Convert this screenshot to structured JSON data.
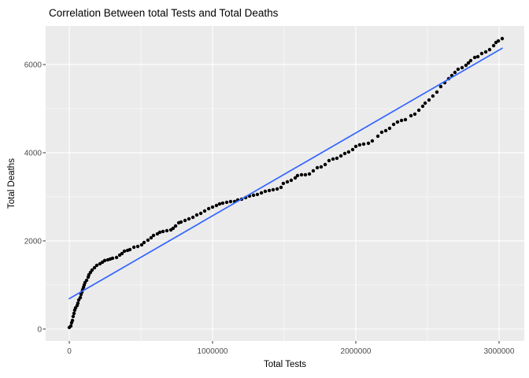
{
  "chart_data": {
    "type": "scatter",
    "title": "Correlation Between total Tests and Total Deaths",
    "xlabel": "Total Tests",
    "ylabel": "Total Deaths",
    "xlim": [
      -165000,
      3176000
    ],
    "ylim": [
      -270,
      6875
    ],
    "grid": true,
    "legend": "none",
    "panel_bg": "#EBEBEB",
    "grid_color": "#FFFFFF",
    "tick_color": "#333333",
    "tick_label_color": "#4D4D4D",
    "point_color": "#000000",
    "x_ticks": {
      "major": [
        0,
        1000000,
        2000000,
        3000000
      ],
      "minor": [
        500000,
        1500000,
        2500000
      ],
      "labels": [
        "0",
        "1000000",
        "2000000",
        "3000000"
      ]
    },
    "y_ticks": {
      "major": [
        0,
        2000,
        4000,
        6000
      ],
      "minor": [
        1000,
        3000,
        5000
      ],
      "labels": [
        "0",
        "2000",
        "4000",
        "6000"
      ]
    },
    "smooth_line": {
      "name": "linear-fit",
      "color": "#3366FF",
      "x": [
        0,
        3022000
      ],
      "y": [
        690,
        6370
      ]
    },
    "points": [
      [
        0,
        36
      ],
      [
        11000,
        71
      ],
      [
        16000,
        143
      ],
      [
        22000,
        196
      ],
      [
        27000,
        286
      ],
      [
        33000,
        357
      ],
      [
        38000,
        429
      ],
      [
        44000,
        482
      ],
      [
        55000,
        536
      ],
      [
        60000,
        589
      ],
      [
        66000,
        661
      ],
      [
        77000,
        714
      ],
      [
        82000,
        786
      ],
      [
        88000,
        839
      ],
      [
        93000,
        893
      ],
      [
        99000,
        946
      ],
      [
        104000,
        1000
      ],
      [
        110000,
        1054
      ],
      [
        121000,
        1107
      ],
      [
        132000,
        1179
      ],
      [
        137000,
        1232
      ],
      [
        148000,
        1286
      ],
      [
        159000,
        1339
      ],
      [
        176000,
        1393
      ],
      [
        192000,
        1446
      ],
      [
        214000,
        1482
      ],
      [
        231000,
        1518
      ],
      [
        247000,
        1554
      ],
      [
        269000,
        1571
      ],
      [
        286000,
        1589
      ],
      [
        302000,
        1607
      ],
      [
        330000,
        1625
      ],
      [
        352000,
        1679
      ],
      [
        368000,
        1714
      ],
      [
        385000,
        1768
      ],
      [
        407000,
        1786
      ],
      [
        423000,
        1804
      ],
      [
        451000,
        1857
      ],
      [
        478000,
        1875
      ],
      [
        505000,
        1911
      ],
      [
        522000,
        1964
      ],
      [
        549000,
        2018
      ],
      [
        571000,
        2071
      ],
      [
        588000,
        2125
      ],
      [
        615000,
        2161
      ],
      [
        632000,
        2196
      ],
      [
        654000,
        2214
      ],
      [
        681000,
        2232
      ],
      [
        709000,
        2250
      ],
      [
        725000,
        2286
      ],
      [
        742000,
        2339
      ],
      [
        764000,
        2411
      ],
      [
        780000,
        2429
      ],
      [
        808000,
        2464
      ],
      [
        835000,
        2500
      ],
      [
        863000,
        2536
      ],
      [
        890000,
        2589
      ],
      [
        918000,
        2625
      ],
      [
        945000,
        2679
      ],
      [
        973000,
        2732
      ],
      [
        1000000,
        2768
      ],
      [
        1027000,
        2804
      ],
      [
        1049000,
        2839
      ],
      [
        1071000,
        2857
      ],
      [
        1099000,
        2875
      ],
      [
        1126000,
        2893
      ],
      [
        1154000,
        2893
      ],
      [
        1176000,
        2929
      ],
      [
        1203000,
        2946
      ],
      [
        1231000,
        2982
      ],
      [
        1258000,
        3018
      ],
      [
        1286000,
        3036
      ],
      [
        1313000,
        3054
      ],
      [
        1341000,
        3089
      ],
      [
        1368000,
        3125
      ],
      [
        1396000,
        3143
      ],
      [
        1423000,
        3161
      ],
      [
        1451000,
        3179
      ],
      [
        1478000,
        3214
      ],
      [
        1494000,
        3304
      ],
      [
        1522000,
        3339
      ],
      [
        1549000,
        3375
      ],
      [
        1577000,
        3429
      ],
      [
        1593000,
        3482
      ],
      [
        1621000,
        3500
      ],
      [
        1648000,
        3500
      ],
      [
        1676000,
        3518
      ],
      [
        1703000,
        3589
      ],
      [
        1731000,
        3661
      ],
      [
        1758000,
        3679
      ],
      [
        1786000,
        3732
      ],
      [
        1813000,
        3821
      ],
      [
        1841000,
        3857
      ],
      [
        1868000,
        3875
      ],
      [
        1896000,
        3929
      ],
      [
        1923000,
        3982
      ],
      [
        1950000,
        4018
      ],
      [
        1978000,
        4071
      ],
      [
        2000000,
        4143
      ],
      [
        2027000,
        4179
      ],
      [
        2055000,
        4196
      ],
      [
        2088000,
        4214
      ],
      [
        2115000,
        4268
      ],
      [
        2154000,
        4375
      ],
      [
        2181000,
        4464
      ],
      [
        2209000,
        4500
      ],
      [
        2236000,
        4554
      ],
      [
        2264000,
        4643
      ],
      [
        2291000,
        4696
      ],
      [
        2319000,
        4732
      ],
      [
        2346000,
        4750
      ],
      [
        2385000,
        4839
      ],
      [
        2412000,
        4875
      ],
      [
        2440000,
        4964
      ],
      [
        2467000,
        5054
      ],
      [
        2484000,
        5125
      ],
      [
        2511000,
        5196
      ],
      [
        2538000,
        5286
      ],
      [
        2566000,
        5375
      ],
      [
        2593000,
        5500
      ],
      [
        2621000,
        5589
      ],
      [
        2648000,
        5679
      ],
      [
        2670000,
        5750
      ],
      [
        2692000,
        5821
      ],
      [
        2714000,
        5893
      ],
      [
        2742000,
        5929
      ],
      [
        2769000,
        5982
      ],
      [
        2786000,
        6036
      ],
      [
        2802000,
        6089
      ],
      [
        2830000,
        6161
      ],
      [
        2852000,
        6179
      ],
      [
        2879000,
        6250
      ],
      [
        2907000,
        6286
      ],
      [
        2934000,
        6339
      ],
      [
        2962000,
        6429
      ],
      [
        2978000,
        6500
      ],
      [
        2995000,
        6536
      ],
      [
        3022000,
        6589
      ]
    ]
  }
}
